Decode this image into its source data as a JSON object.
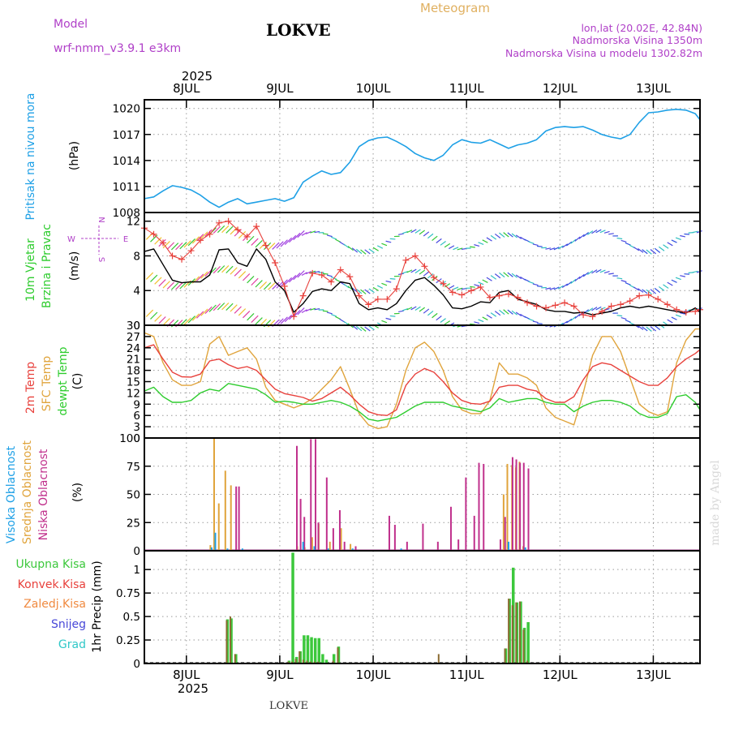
{
  "header": {
    "model_label": "Model",
    "model_name": "wrf-nmm_v3.9.1  e3km",
    "station": "LOKVE",
    "meteogram": "Meteogram",
    "coords": "lon,lat (20.02E, 42.84N)",
    "altitude": "Nadmorska Visina 1350m",
    "model_altitude": "Nadmorska Visina u modelu 1302.82m",
    "year": "2025",
    "bottom_station": "LOKVE",
    "watermark": "made by Angel"
  },
  "colors": {
    "pressure": "#1ea0e6",
    "wind_speed": "#000000",
    "gust": "#e8413c",
    "t2m": "#e8413c",
    "sfc": "#e0a43c",
    "dewpt": "#2ecc2e",
    "high_cloud": "#1ea0e6",
    "mid_cloud": "#e0a43c",
    "low_cloud": "#c0308c",
    "total_precip": "#3cc83c",
    "conv_precip": "#e8413c",
    "frozen_precip": "#f08a40",
    "snow": "#4848d8",
    "graupel": "#30c8c8",
    "purple_text": "#b040c8",
    "orange_text": "#e0b060"
  },
  "days": [
    "8JUL",
    "9JUL",
    "10JUL",
    "11JUL",
    "12JUL",
    "13JUL"
  ],
  "chart_data": [
    {
      "type": "line",
      "id": "pressure",
      "title": "Pritisak na nivou mora",
      "ylabel": "(hPa)",
      "ylim": [
        1008,
        1021
      ],
      "yticks": [
        1008,
        1011,
        1014,
        1017,
        1020
      ],
      "x": [
        7.55,
        7.65,
        7.75,
        7.85,
        7.95,
        8.05,
        8.15,
        8.25,
        8.35,
        8.45,
        8.55,
        8.65,
        8.75,
        8.85,
        8.95,
        9.05,
        9.15,
        9.25,
        9.35,
        9.45,
        9.55,
        9.65,
        9.75,
        9.85,
        9.95,
        10.05,
        10.15,
        10.25,
        10.35,
        10.45,
        10.55,
        10.65,
        10.75,
        10.85,
        10.95,
        11.05,
        11.15,
        11.25,
        11.35,
        11.45,
        11.55,
        11.65,
        11.75,
        11.85,
        11.95,
        12.05,
        12.15,
        12.25,
        12.35,
        12.45,
        12.55,
        12.65,
        12.75,
        12.85,
        12.95,
        13.05,
        13.15,
        13.25,
        13.35,
        13.45,
        13.5
      ],
      "series": [
        {
          "name": "Pritisak",
          "values": [
            1009.6,
            1009.8,
            1010.5,
            1011.1,
            1010.9,
            1010.6,
            1010.0,
            1009.2,
            1008.6,
            1009.2,
            1009.6,
            1009.0,
            1009.2,
            1009.4,
            1009.6,
            1009.3,
            1009.7,
            1011.5,
            1012.2,
            1012.8,
            1012.4,
            1012.6,
            1013.8,
            1015.6,
            1016.3,
            1016.6,
            1016.7,
            1016.2,
            1015.6,
            1014.8,
            1014.3,
            1014.0,
            1014.6,
            1015.8,
            1016.4,
            1016.1,
            1016.0,
            1016.4,
            1015.9,
            1015.4,
            1015.8,
            1016.0,
            1016.4,
            1017.4,
            1017.8,
            1017.9,
            1017.8,
            1017.9,
            1017.5,
            1017.0,
            1016.7,
            1016.5,
            1017.0,
            1018.4,
            1019.5,
            1019.6,
            1019.8,
            1019.9,
            1019.8,
            1019.4,
            1018.7
          ]
        }
      ]
    },
    {
      "type": "line",
      "id": "wind",
      "title": "10m Vjetar Brzina i Pravac",
      "ylabel": "(m/s)",
      "ylim": [
        0,
        13
      ],
      "yticks": [
        0,
        4,
        8,
        12
      ],
      "compass": {
        "n": "N",
        "s": "S",
        "w": "W",
        "e": "E"
      },
      "x": [
        7.55,
        7.65,
        7.75,
        7.85,
        7.95,
        8.05,
        8.15,
        8.25,
        8.35,
        8.45,
        8.55,
        8.65,
        8.75,
        8.85,
        8.95,
        9.05,
        9.15,
        9.25,
        9.35,
        9.45,
        9.55,
        9.65,
        9.75,
        9.85,
        9.95,
        10.05,
        10.15,
        10.25,
        10.35,
        10.45,
        10.55,
        10.65,
        10.75,
        10.85,
        10.95,
        11.05,
        11.15,
        11.25,
        11.35,
        11.45,
        11.55,
        11.65,
        11.75,
        11.85,
        11.95,
        12.05,
        12.15,
        12.25,
        12.35,
        12.45,
        12.55,
        12.65,
        12.75,
        12.85,
        12.95,
        13.05,
        13.15,
        13.25,
        13.35,
        13.45,
        13.5
      ],
      "series": [
        {
          "name": "Brzina",
          "values": [
            8.5,
            8.8,
            7.0,
            5.2,
            4.9,
            5.0,
            5.0,
            5.8,
            8.7,
            8.8,
            7.2,
            6.8,
            8.8,
            7.6,
            5.0,
            4.0,
            1.5,
            2.5,
            3.9,
            4.2,
            4.0,
            5.0,
            4.8,
            2.5,
            1.8,
            2.0,
            1.8,
            2.5,
            4.0,
            5.2,
            5.5,
            4.6,
            3.5,
            2.0,
            1.9,
            2.2,
            2.7,
            2.6,
            3.8,
            4.0,
            3.0,
            2.7,
            2.4,
            1.8,
            1.6,
            1.6,
            1.4,
            1.5,
            1.2,
            1.4,
            1.6,
            2.0,
            2.2,
            2.0,
            2.2,
            2.0,
            1.8,
            1.6,
            1.4,
            2.0,
            1.5
          ]
        },
        {
          "name": "Udari",
          "values": [
            11.2,
            10.5,
            9.5,
            8.0,
            7.6,
            8.6,
            9.8,
            10.5,
            11.8,
            12.0,
            11.0,
            10.2,
            11.4,
            9.2,
            7.2,
            4.5,
            1.0,
            3.4,
            6.0,
            5.8,
            5.0,
            6.4,
            5.6,
            3.4,
            2.4,
            3.0,
            3.0,
            4.2,
            7.5,
            8.0,
            6.8,
            5.5,
            4.8,
            3.8,
            3.5,
            4.0,
            4.4,
            3.2,
            3.4,
            3.6,
            3.2,
            2.6,
            2.2,
            2.0,
            2.3,
            2.6,
            2.2,
            1.2,
            1.0,
            1.6,
            2.2,
            2.4,
            2.8,
            3.4,
            3.5,
            3.0,
            2.4,
            1.8,
            1.5,
            1.6,
            1.8
          ]
        }
      ]
    },
    {
      "type": "line",
      "id": "temperature",
      "labels": [
        "2m Temp",
        "SFC Temp",
        "dewpt Temp"
      ],
      "ylabel": "(C)",
      "ylim": [
        0,
        30
      ],
      "yticks": [
        0,
        3,
        6,
        9,
        12,
        15,
        18,
        21,
        24,
        27,
        30
      ],
      "x": [
        7.55,
        7.65,
        7.75,
        7.85,
        7.95,
        8.05,
        8.15,
        8.25,
        8.35,
        8.45,
        8.55,
        8.65,
        8.75,
        8.85,
        8.95,
        9.05,
        9.15,
        9.25,
        9.35,
        9.45,
        9.55,
        9.65,
        9.75,
        9.85,
        9.95,
        10.05,
        10.15,
        10.25,
        10.35,
        10.45,
        10.55,
        10.65,
        10.75,
        10.85,
        10.95,
        11.05,
        11.15,
        11.25,
        11.35,
        11.45,
        11.55,
        11.65,
        11.75,
        11.85,
        11.95,
        12.05,
        12.15,
        12.25,
        12.35,
        12.45,
        12.55,
        12.65,
        12.75,
        12.85,
        12.95,
        13.05,
        13.15,
        13.25,
        13.35,
        13.45,
        13.5
      ],
      "series": [
        {
          "name": "2m Temp",
          "values": [
            24.0,
            24.8,
            21.0,
            17.5,
            16.3,
            16.2,
            17.0,
            20.5,
            21.0,
            19.5,
            18.5,
            19.0,
            18.0,
            15.5,
            13.0,
            11.8,
            11.3,
            10.8,
            9.8,
            10.5,
            12.0,
            13.5,
            11.5,
            9.0,
            7.0,
            6.2,
            6.0,
            7.5,
            14.0,
            17.0,
            18.5,
            17.5,
            15.0,
            12.0,
            10.0,
            9.2,
            9.0,
            9.8,
            13.5,
            14.0,
            14.0,
            13.0,
            12.5,
            10.5,
            9.5,
            9.5,
            11.0,
            15.5,
            19.0,
            20.0,
            19.5,
            18.0,
            16.5,
            15.0,
            14.0,
            14.0,
            16.0,
            19.0,
            21.0,
            22.5,
            23.5
          ]
        },
        {
          "name": "SFC Temp",
          "values": [
            28.0,
            27.0,
            20.0,
            15.5,
            14.0,
            14.0,
            15.0,
            25.0,
            27.0,
            22.0,
            23.0,
            24.0,
            21.0,
            13.5,
            10.0,
            9.0,
            8.0,
            9.0,
            10.5,
            13.0,
            15.5,
            19.0,
            13.0,
            6.5,
            3.5,
            2.5,
            3.0,
            9.0,
            18.0,
            24.0,
            25.5,
            23.0,
            18.0,
            11.0,
            7.5,
            6.5,
            6.5,
            10.0,
            20.0,
            17.0,
            17.0,
            16.0,
            14.0,
            8.0,
            5.5,
            4.5,
            3.5,
            12.0,
            22.0,
            27.0,
            27.0,
            23.0,
            16.0,
            9.0,
            7.0,
            6.0,
            7.0,
            20.0,
            26.0,
            29.0,
            29.0
          ]
        },
        {
          "name": "dewpt Temp",
          "values": [
            12.5,
            13.5,
            11.0,
            9.5,
            9.5,
            10.0,
            12.0,
            13.0,
            12.5,
            14.5,
            14.0,
            13.5,
            13.0,
            11.5,
            9.5,
            9.8,
            9.5,
            9.0,
            9.0,
            9.5,
            10.0,
            9.5,
            8.5,
            7.0,
            5.0,
            4.5,
            5.0,
            5.5,
            7.0,
            8.5,
            9.5,
            9.5,
            9.5,
            8.5,
            8.0,
            7.5,
            7.0,
            8.0,
            10.5,
            9.5,
            10.0,
            10.5,
            10.5,
            9.5,
            9.0,
            9.0,
            7.0,
            8.5,
            9.5,
            10.0,
            10.0,
            9.5,
            8.5,
            6.5,
            5.5,
            5.5,
            6.5,
            11.0,
            11.5,
            9.5,
            7.5
          ]
        }
      ]
    },
    {
      "type": "bar",
      "id": "clouds",
      "labels": [
        "Visoka Oblacnost",
        "Srednja Oblacnost",
        "Niska Oblacnost"
      ],
      "ylabel": "(%)",
      "ylim": [
        0,
        100
      ],
      "yticks": [
        0,
        25,
        50,
        75,
        100
      ],
      "series": [
        {
          "name": "Visoka",
          "x": [
            8.27,
            8.31,
            8.44,
            8.6,
            9.25,
            9.37,
            9.52,
            9.78,
            10.3,
            11.45,
            11.63
          ],
          "values": [
            3,
            16,
            2,
            2,
            8,
            4,
            2,
            2,
            2,
            8,
            3
          ]
        },
        {
          "name": "Srednja",
          "x": [
            8.27,
            8.31,
            8.36,
            8.43,
            8.49,
            9.2,
            9.28,
            9.36,
            9.43,
            9.55,
            9.67,
            9.77,
            11.41,
            11.45,
            11.5,
            11.54,
            11.58,
            11.62
          ],
          "values": [
            5,
            100,
            42,
            71,
            58,
            4,
            3,
            12,
            24,
            8,
            20,
            6,
            50,
            77,
            76,
            74,
            79,
            4
          ]
        },
        {
          "name": "Niska",
          "x": [
            8.52,
            8.55,
            9.17,
            9.21,
            9.25,
            9.32,
            9.37,
            9.4,
            9.49,
            9.56,
            9.63,
            9.68,
            9.8,
            10.16,
            10.22,
            10.35,
            10.52,
            10.68,
            10.82,
            10.9,
            10.98,
            11.07,
            11.12,
            11.17,
            11.35,
            11.4,
            11.48,
            11.52,
            11.56,
            11.6,
            11.65
          ],
          "values": [
            57,
            57,
            93,
            46,
            30,
            99,
            99,
            25,
            65,
            20,
            36,
            8,
            4,
            31,
            23,
            8,
            24,
            8,
            39,
            10,
            65,
            31,
            78,
            77,
            10,
            30,
            83,
            81,
            78,
            78,
            73
          ]
        }
      ]
    },
    {
      "type": "bar",
      "id": "precip",
      "labels": [
        "Ukupna Kisa",
        "Konvek.Kisa",
        "Zaledj.Kisa",
        "Snijeg",
        "Grad"
      ],
      "ylabel": "1hr Precip (mm)",
      "ylim": [
        0,
        1.2
      ],
      "yticks": [
        0,
        0.25,
        0.5,
        0.75,
        1
      ],
      "ytick_labels": [
        "0",
        "0.25",
        "0.5",
        "0.75",
        "1"
      ],
      "series": [
        {
          "name": "Ukupna Kisa",
          "x": [
            8.44,
            8.48,
            8.53,
            9.1,
            9.14,
            9.18,
            9.22,
            9.26,
            9.3,
            9.34,
            9.38,
            9.42,
            9.46,
            9.5,
            9.58,
            9.63,
            11.42,
            11.46,
            11.5,
            11.54,
            11.58,
            11.62,
            11.66
          ],
          "values": [
            0.47,
            0.48,
            0.1,
            0.03,
            1.18,
            0.07,
            0.13,
            0.3,
            0.3,
            0.28,
            0.27,
            0.27,
            0.1,
            0.04,
            0.1,
            0.18,
            0.16,
            0.69,
            1.02,
            0.65,
            0.66,
            0.38,
            0.44
          ]
        },
        {
          "name": "Konvek.Kisa",
          "x": [
            8.44,
            8.48,
            8.53,
            9.1,
            9.14,
            9.18,
            9.22,
            9.26,
            9.3,
            9.34,
            9.38,
            9.42,
            9.46,
            9.5,
            9.58,
            9.63,
            10.71,
            11.42,
            11.46,
            11.5,
            11.54,
            11.58,
            11.62,
            11.66
          ],
          "values": [
            0.46,
            0.5,
            0.1,
            0.02,
            0.02,
            0.05,
            0.13,
            0.04,
            0.03,
            0.02,
            0.02,
            0.02,
            0.0,
            0.0,
            0.03,
            0.17,
            0.1,
            0.16,
            0.69,
            0.62,
            0.65,
            0.66,
            0.36,
            0.03
          ]
        }
      ]
    }
  ]
}
